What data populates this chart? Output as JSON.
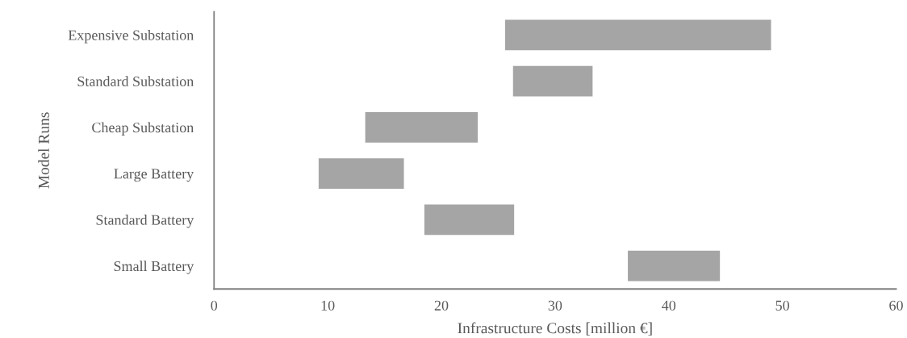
{
  "chart_data": {
    "type": "bar",
    "orientation": "horizontal",
    "xlabel": "Infrastructure Costs [million €]",
    "ylabel": "Model Runs",
    "categories": [
      "Expensive Substation",
      "Standard Substation",
      "Cheap Substation",
      "Large Battery",
      "Standard Battery",
      "Small Battery"
    ],
    "base": [
      25.6,
      26.3,
      13.3,
      9.2,
      18.5,
      36.4
    ],
    "values": [
      23.4,
      7.0,
      9.9,
      7.5,
      7.9,
      8.1
    ],
    "color": "#a5a5a5",
    "xlim": [
      0,
      60
    ],
    "xticks": [
      0,
      10,
      20,
      30,
      40,
      50,
      60
    ],
    "grid": false,
    "legend": false
  }
}
